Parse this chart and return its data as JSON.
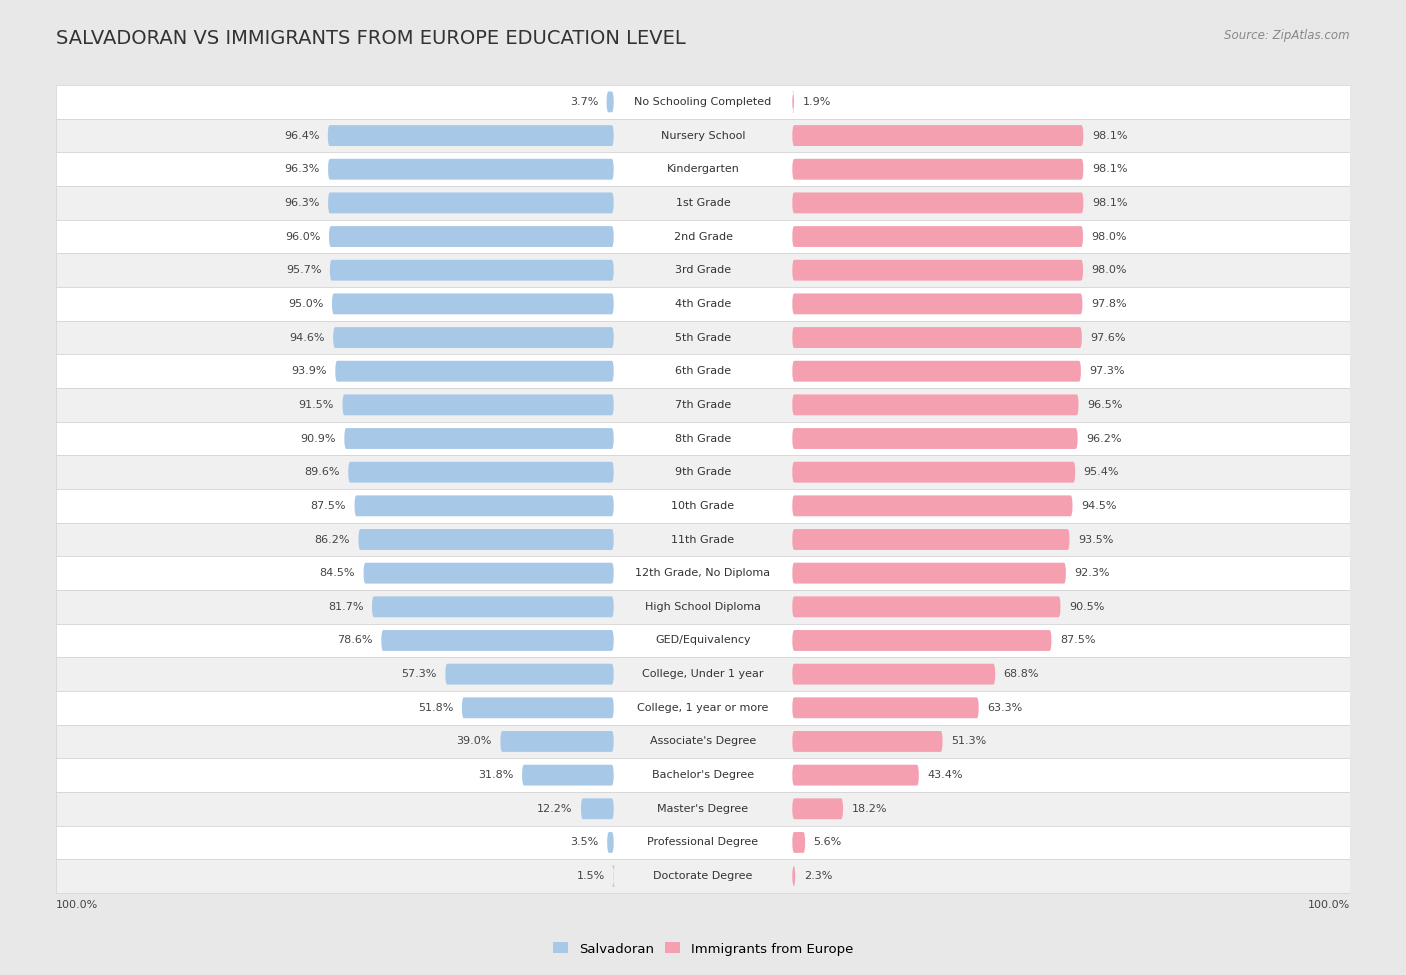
{
  "title": "SALVADORAN VS IMMIGRANTS FROM EUROPE EDUCATION LEVEL",
  "source": "Source: ZipAtlas.com",
  "categories": [
    "No Schooling Completed",
    "Nursery School",
    "Kindergarten",
    "1st Grade",
    "2nd Grade",
    "3rd Grade",
    "4th Grade",
    "5th Grade",
    "6th Grade",
    "7th Grade",
    "8th Grade",
    "9th Grade",
    "10th Grade",
    "11th Grade",
    "12th Grade, No Diploma",
    "High School Diploma",
    "GED/Equivalency",
    "College, Under 1 year",
    "College, 1 year or more",
    "Associate's Degree",
    "Bachelor's Degree",
    "Master's Degree",
    "Professional Degree",
    "Doctorate Degree"
  ],
  "salvadoran": [
    3.7,
    96.4,
    96.3,
    96.3,
    96.0,
    95.7,
    95.0,
    94.6,
    93.9,
    91.5,
    90.9,
    89.6,
    87.5,
    86.2,
    84.5,
    81.7,
    78.6,
    57.3,
    51.8,
    39.0,
    31.8,
    12.2,
    3.5,
    1.5
  ],
  "europe": [
    1.9,
    98.1,
    98.1,
    98.1,
    98.0,
    98.0,
    97.8,
    97.6,
    97.3,
    96.5,
    96.2,
    95.4,
    94.5,
    93.5,
    92.3,
    90.5,
    87.5,
    68.8,
    63.3,
    51.3,
    43.4,
    18.2,
    5.6,
    2.3
  ],
  "salvadoran_color": "#a8c8e8",
  "europe_color": "#f4a0b0",
  "background_color": "#e8e8e8",
  "row_even_color": "#ffffff",
  "row_odd_color": "#f0f0f0",
  "legend_salvadoran": "Salvadoran",
  "legend_europe": "Immigrants from Europe",
  "title_fontsize": 14,
  "label_fontsize": 8,
  "value_fontsize": 8
}
